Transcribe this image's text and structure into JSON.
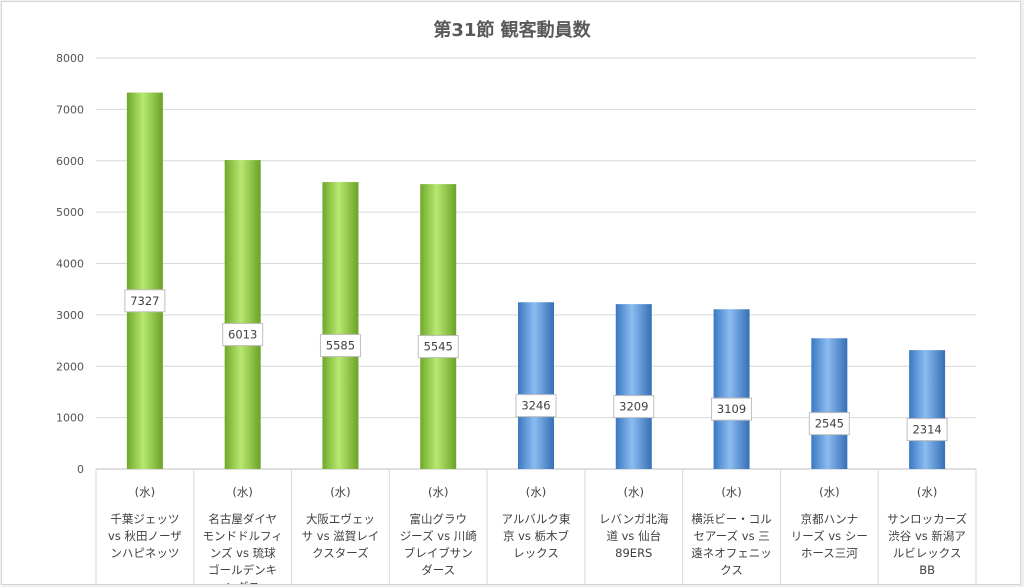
{
  "chart_data": {
    "type": "bar",
    "title": "第31節 観客動員数",
    "xlabel": "",
    "ylabel": "",
    "ylim": [
      0,
      8000
    ],
    "yticks": [
      0,
      1000,
      2000,
      3000,
      4000,
      5000,
      6000,
      7000,
      8000
    ],
    "grid": true,
    "legend": "none",
    "data_labels": true,
    "categories": [
      {
        "day": "(水)",
        "lines": [
          "千葉ジェッツ",
          "vs 秋田ノーザ",
          "ンハピネッツ"
        ]
      },
      {
        "day": "(水)",
        "lines": [
          "名古屋ダイヤ",
          "モンドドルフィ",
          "ンズ vs 琉球",
          "ゴールデンキ",
          "ングス"
        ]
      },
      {
        "day": "(水)",
        "lines": [
          "大阪エヴェッ",
          "サ vs 滋賀レイ",
          "クスターズ"
        ]
      },
      {
        "day": "(水)",
        "lines": [
          "富山グラウ",
          "ジーズ vs 川崎",
          "ブレイブサン",
          "ダース"
        ]
      },
      {
        "day": "(水)",
        "lines": [
          "アルバルク東",
          "京 vs 栃木ブ",
          "レックス"
        ]
      },
      {
        "day": "(水)",
        "lines": [
          "レバンガ北海",
          "道 vs 仙台",
          "89ERS"
        ]
      },
      {
        "day": "(水)",
        "lines": [
          "横浜ビー・コル",
          "セアーズ vs 三",
          "遠ネオフェニッ",
          "クス"
        ]
      },
      {
        "day": "(水)",
        "lines": [
          "京都ハンナ",
          "リーズ vs シー",
          "ホース三河"
        ]
      },
      {
        "day": "(水)",
        "lines": [
          "サンロッカーズ",
          "渋谷 vs 新潟ア",
          "ルビレックス",
          "BB"
        ]
      }
    ],
    "values": [
      7327,
      6013,
      5585,
      5545,
      3246,
      3209,
      3109,
      2545,
      2314
    ],
    "bar_colors": [
      "#8dc63f",
      "#8dc63f",
      "#8dc63f",
      "#8dc63f",
      "#4f8fd6",
      "#4f8fd6",
      "#4f8fd6",
      "#4f8fd6",
      "#4f8fd6"
    ]
  }
}
